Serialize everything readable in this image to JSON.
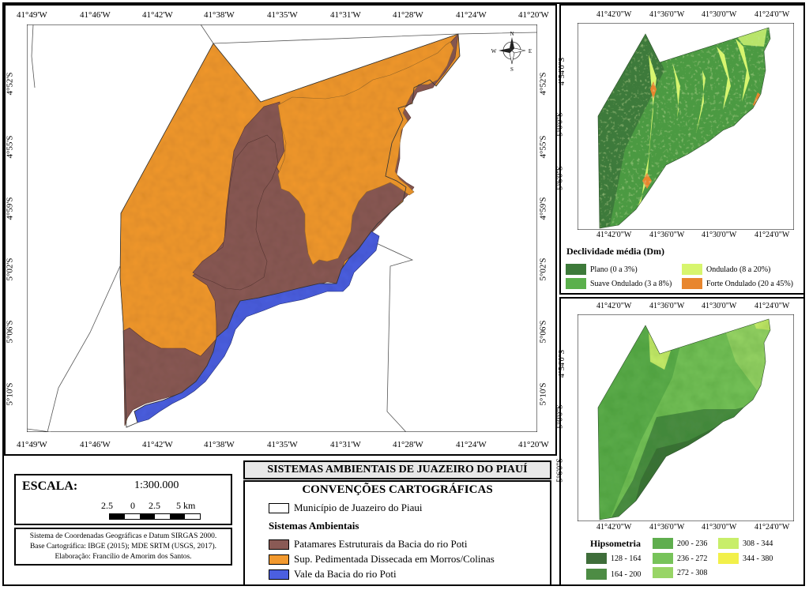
{
  "main_map": {
    "lon_labels": [
      "41°49'W",
      "41°46'W",
      "41°42'W",
      "41°38'W",
      "41°35'W",
      "41°31'W",
      "41°28'W",
      "41°24'W",
      "41°20'W"
    ],
    "lat_labels": [
      "4°52'S",
      "4°55'S",
      "4°59'S",
      "5°02'S",
      "5°06'S",
      "5°10'S"
    ],
    "north_arrow": {
      "n": "N",
      "s": "S",
      "e": "E",
      "w": "W"
    },
    "colors": {
      "patamares": "#8a5a55",
      "sup_pedimentada": "#f2992e",
      "vale": "#4b5fe0"
    }
  },
  "slope_map": {
    "lon_labels": [
      "41°42'0\"W",
      "41°36'0\"W",
      "41°30'0\"W",
      "41°24'0\"W"
    ],
    "lat_labels": [
      "4°54'0\"S",
      "5°0'0\"S",
      "5°6'0\"S"
    ],
    "legend_title": "Declividade média (Dm)",
    "legend": [
      {
        "label": "Plano (0 a 3%)",
        "color": "#3d7a3a"
      },
      {
        "label": "Ondulado (8 a 20%)",
        "color": "#d7f56e"
      },
      {
        "label": "Suave Ondulado (3 a 8%)",
        "color": "#5bb04c"
      },
      {
        "label": "Forte Ondulado (20 a 45%)",
        "color": "#e8862e"
      }
    ]
  },
  "hypso_map": {
    "lon_labels": [
      "41°42'0\"W",
      "41°36'0\"W",
      "41°30'0\"W",
      "41°24'0\"W"
    ],
    "lat_labels": [
      "4°54'0\"S",
      "5°0'0\"S",
      "5°6'0\"S"
    ],
    "legend_title": "Hipsometria",
    "legend": [
      {
        "label": "128 - 164",
        "color": "#3f6e3a"
      },
      {
        "label": "164 - 200",
        "color": "#4d8c44"
      },
      {
        "label": "200 - 236",
        "color": "#5fae4e"
      },
      {
        "label": "236 - 272",
        "color": "#77c35a"
      },
      {
        "label": "272 - 308",
        "color": "#98d566"
      },
      {
        "label": "308 - 344",
        "color": "#c8ee6a"
      },
      {
        "label": "344 - 380",
        "color": "#f2f04a"
      }
    ]
  },
  "scale": {
    "title": "ESCALA:",
    "ratio": "1:300.000",
    "ticks": [
      "2.5",
      "0",
      "2.5",
      "5 km"
    ]
  },
  "credits": [
    "Sistema de Coordenadas Geográficas e Datum SIRGAS 2000.",
    "Base Cartográfica: IBGE (2015); MDE SRTM (USGS, 2017).",
    "Elaboração: Francílio de Amorim dos Santos."
  ],
  "title": "SISTEMAS AMBIENTAIS DE JUAZEIRO DO PIAUÍ",
  "conventions": {
    "heading": "CONVENÇÕES CARTOGRÁFICAS",
    "municipio": "Município de Juazeiro do Piaui",
    "sistemas_heading": "Sistemas Ambientais",
    "items": [
      {
        "label": "Patamares Estruturais da Bacia do rio Poti",
        "color": "#8a5a55"
      },
      {
        "label": "Sup. Pedimentada Dissecada em Morros/Colinas",
        "color": "#f2992e"
      },
      {
        "label": "Vale da Bacia do rio Poti",
        "color": "#4b5fe0"
      }
    ]
  }
}
